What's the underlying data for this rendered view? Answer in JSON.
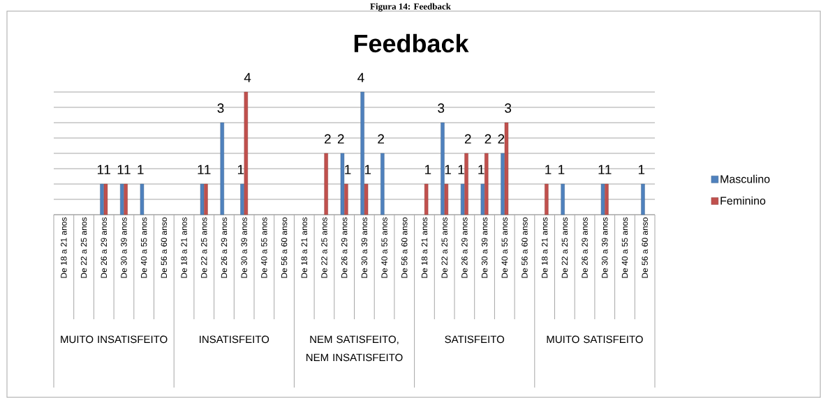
{
  "chart_data": {
    "type": "bar",
    "title": "Feedback",
    "categories": [
      "De 18 a 21 anos",
      "De 22 a 25 anos",
      "De 26 a 29 anos",
      "De 30 a 39 anos",
      "De 40 a 55 anos",
      "De 56 a 60 anso",
      "De 18 a 21 anos",
      "De 22 a 25 anos",
      "De 26 a 29 anos",
      "De 30 a 39 anos",
      "De 40 a 55 anos",
      "De 56 a 60 anso",
      "De 18 a 21 anos",
      "De 22 a 25 anos",
      "De 26 a 29 anos",
      "De 30 a 39 anos",
      "De 40 a 55 anos",
      "De 56 a 60 anso",
      "De 18 a 21 anos",
      "De 22 a 25 anos",
      "De 26 a 29 anos",
      "De 30 a 39 anos",
      "De 40 a 55 anos",
      "De 56 a 60 anso",
      "De 18 a 21 anos",
      "De 22 a 25 anos",
      "De 26 a 29 anos",
      "De 30 a 39 anos",
      "De 40 a 55 anos",
      "De 56 a 60 anso"
    ],
    "series": [
      {
        "name": "Masculino",
        "color": "#4f81bd",
        "values": [
          null,
          null,
          1,
          1,
          1,
          null,
          null,
          1,
          3,
          1,
          null,
          null,
          null,
          null,
          2,
          4,
          2,
          null,
          null,
          3,
          1,
          1,
          2,
          null,
          null,
          1,
          null,
          1,
          null,
          1
        ]
      },
      {
        "name": "Feminino",
        "color": "#c0504d",
        "values": [
          null,
          null,
          1,
          1,
          null,
          null,
          null,
          1,
          null,
          4,
          null,
          null,
          null,
          2,
          1,
          1,
          null,
          null,
          1,
          1,
          2,
          2,
          3,
          null,
          1,
          null,
          null,
          1,
          null,
          null
        ]
      }
    ],
    "ylim": [
      0,
      4
    ],
    "yticks": [
      {
        "value": 0,
        "label": null
      },
      {
        "value": 0.5,
        "label": null
      },
      {
        "value": 1,
        "label": null
      },
      {
        "value": 1.5,
        "label": null
      },
      {
        "value": 2,
        "label": null
      },
      {
        "value": 2.5,
        "label": null
      },
      {
        "value": 3,
        "label": null
      },
      {
        "value": 3.5,
        "label": null
      },
      {
        "value": 4,
        "label": null
      }
    ],
    "tick_labels": "x",
    "grid": "y",
    "data_labels": true,
    "legend": "right",
    "annotations": [
      "Figura 14: Feedback",
      "MUITO INSATISFEITO",
      "INSATISFEITO",
      "NEM SATISFEITO, NEM INSATISFEITO",
      "SATISFEITO",
      "MUITO SATISFEITO"
    ]
  }
}
